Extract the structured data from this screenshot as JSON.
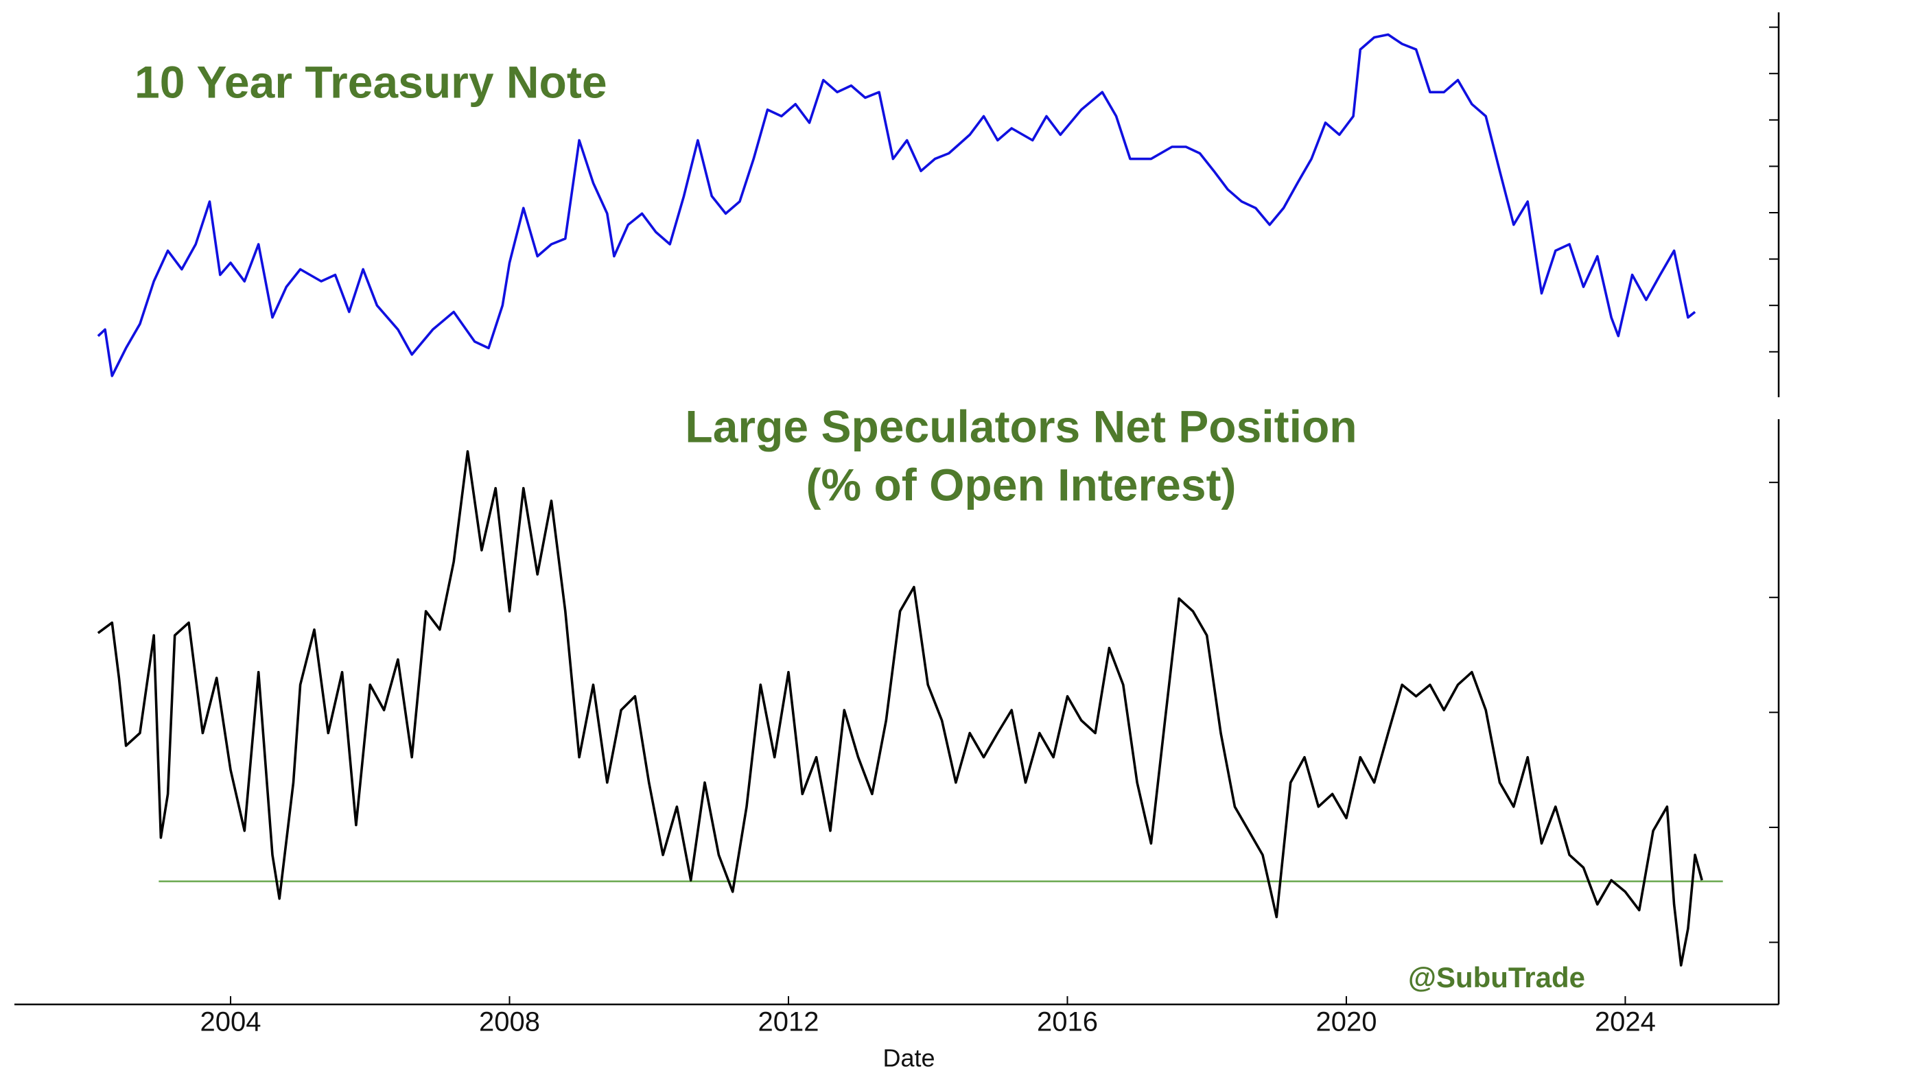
{
  "chart_data": [
    {
      "type": "line",
      "title": "10 Year Treasury Note",
      "title_color": "#4f7a2c",
      "color": "#1010e0",
      "xlim": [
        2000.9,
        2026.2
      ],
      "ylim": [
        105.1,
        146.6
      ],
      "yticks": [
        110,
        115,
        120,
        125,
        130,
        135,
        140,
        145
      ],
      "x": [
        2002.1,
        2002.2,
        2002.3,
        2002.5,
        2002.7,
        2002.9,
        2003.1,
        2003.3,
        2003.5,
        2003.7,
        2003.85,
        2004.0,
        2004.2,
        2004.4,
        2004.6,
        2004.8,
        2005.0,
        2005.3,
        2005.5,
        2005.7,
        2005.9,
        2006.1,
        2006.4,
        2006.6,
        2006.9,
        2007.2,
        2007.5,
        2007.7,
        2007.9,
        2008.0,
        2008.2,
        2008.4,
        2008.6,
        2008.8,
        2009.0,
        2009.2,
        2009.4,
        2009.5,
        2009.7,
        2009.9,
        2010.1,
        2010.3,
        2010.5,
        2010.7,
        2010.9,
        2011.1,
        2011.3,
        2011.5,
        2011.7,
        2011.9,
        2012.1,
        2012.3,
        2012.5,
        2012.7,
        2012.9,
        2013.1,
        2013.3,
        2013.5,
        2013.7,
        2013.9,
        2014.1,
        2014.3,
        2014.6,
        2014.8,
        2015.0,
        2015.2,
        2015.5,
        2015.7,
        2015.9,
        2016.2,
        2016.5,
        2016.7,
        2016.9,
        2017.2,
        2017.5,
        2017.7,
        2017.9,
        2018.1,
        2018.3,
        2018.5,
        2018.7,
        2018.9,
        2019.1,
        2019.3,
        2019.5,
        2019.7,
        2019.9,
        2020.1,
        2020.2,
        2020.4,
        2020.6,
        2020.8,
        2021.0,
        2021.2,
        2021.4,
        2021.6,
        2021.8,
        2022.0,
        2022.2,
        2022.4,
        2022.6,
        2022.8,
        2023.0,
        2023.2,
        2023.4,
        2023.6,
        2023.8,
        2023.9,
        2024.1,
        2024.3,
        2024.5,
        2024.7,
        2024.9,
        2025.0
      ],
      "values": [
        111.7,
        112.4,
        107.4,
        110.4,
        113.0,
        117.6,
        120.9,
        118.9,
        121.6,
        126.2,
        118.3,
        119.6,
        117.6,
        121.6,
        113.7,
        117.0,
        118.9,
        117.6,
        118.3,
        114.3,
        118.9,
        115.0,
        112.4,
        109.7,
        112.4,
        114.3,
        111.1,
        110.4,
        115.0,
        119.6,
        125.5,
        120.3,
        121.6,
        122.2,
        132.8,
        128.2,
        124.9,
        120.3,
        123.7,
        124.9,
        122.9,
        121.6,
        126.8,
        132.8,
        126.8,
        124.9,
        126.2,
        130.8,
        136.1,
        135.4,
        136.7,
        134.7,
        139.3,
        138.0,
        138.7,
        137.4,
        138.0,
        130.8,
        132.8,
        129.5,
        130.8,
        131.4,
        133.4,
        135.4,
        132.8,
        134.1,
        132.8,
        135.4,
        133.4,
        136.1,
        138.0,
        135.4,
        130.8,
        130.8,
        132.1,
        132.1,
        131.4,
        129.5,
        127.5,
        126.2,
        125.5,
        123.7,
        125.5,
        128.2,
        130.8,
        134.7,
        133.4,
        135.4,
        142.6,
        143.9,
        144.2,
        143.2,
        142.6,
        138.0,
        138.0,
        139.3,
        136.7,
        135.4,
        129.5,
        123.7,
        126.2,
        116.3,
        120.9,
        121.6,
        117.0,
        120.3,
        113.7,
        111.7,
        118.3,
        115.6,
        118.3,
        120.9,
        113.7,
        114.3
      ]
    },
    {
      "type": "line",
      "title": "Large Speculators Net Position",
      "subtitle": "(% of Open Interest)",
      "title_color": "#4f7a2c",
      "color": "#000000",
      "xlabel": "Date",
      "annotation": "@SubuTrade",
      "xlim": [
        2000.9,
        2026.2
      ],
      "xticks": [
        2004,
        2008,
        2012,
        2016,
        2020,
        2024
      ],
      "ylim": [
        -25.4,
        25.5
      ],
      "yticks": [
        -20,
        -10,
        0,
        10,
        20
      ],
      "hline": {
        "value": -14.7,
        "x": [
          2002.97,
          2025.4
        ],
        "color": "#6aa84f"
      },
      "x": [
        2002.1,
        2002.3,
        2002.4,
        2002.5,
        2002.7,
        2002.9,
        2003.0,
        2003.1,
        2003.2,
        2003.4,
        2003.6,
        2003.8,
        2004.0,
        2004.2,
        2004.4,
        2004.6,
        2004.7,
        2004.9,
        2005.0,
        2005.2,
        2005.4,
        2005.6,
        2005.8,
        2006.0,
        2006.2,
        2006.4,
        2006.6,
        2006.8,
        2007.0,
        2007.2,
        2007.4,
        2007.6,
        2007.8,
        2008.0,
        2008.2,
        2008.4,
        2008.6,
        2008.8,
        2009.0,
        2009.2,
        2009.4,
        2009.6,
        2009.8,
        2010.0,
        2010.2,
        2010.4,
        2010.6,
        2010.8,
        2011.0,
        2011.2,
        2011.4,
        2011.6,
        2011.8,
        2012.0,
        2012.2,
        2012.4,
        2012.6,
        2012.8,
        2013.0,
        2013.2,
        2013.4,
        2013.6,
        2013.8,
        2014.0,
        2014.2,
        2014.4,
        2014.6,
        2014.8,
        2015.0,
        2015.2,
        2015.4,
        2015.6,
        2015.8,
        2016.0,
        2016.2,
        2016.4,
        2016.6,
        2016.8,
        2017.0,
        2017.2,
        2017.4,
        2017.6,
        2017.8,
        2018.0,
        2018.2,
        2018.4,
        2018.6,
        2018.8,
        2019.0,
        2019.2,
        2019.4,
        2019.6,
        2019.8,
        2020.0,
        2020.2,
        2020.4,
        2020.6,
        2020.8,
        2021.0,
        2021.2,
        2021.4,
        2021.6,
        2021.8,
        2022.0,
        2022.2,
        2022.4,
        2022.6,
        2022.8,
        2023.0,
        2023.2,
        2023.4,
        2023.6,
        2023.8,
        2024.0,
        2024.2,
        2024.4,
        2024.6,
        2024.7,
        2024.8,
        2024.9,
        2025.0,
        2025.1
      ],
      "values": [
        6.9,
        7.8,
        3.0,
        -2.9,
        -1.8,
        6.7,
        -10.9,
        -7.1,
        6.7,
        7.8,
        -1.8,
        3.0,
        -5.0,
        -10.3,
        3.5,
        -12.4,
        -16.2,
        -6.1,
        2.4,
        7.2,
        -1.8,
        3.5,
        -9.8,
        2.4,
        0.2,
        4.6,
        -3.9,
        8.8,
        7.2,
        13.1,
        22.7,
        14.1,
        19.5,
        8.8,
        19.5,
        12.0,
        18.4,
        8.8,
        -3.9,
        2.4,
        -6.1,
        0.2,
        1.4,
        -6.1,
        -12.4,
        -8.2,
        -14.6,
        -6.1,
        -12.4,
        -15.6,
        -8.2,
        2.4,
        -3.9,
        3.5,
        -7.1,
        -3.9,
        -10.3,
        0.2,
        -3.9,
        -7.1,
        -0.7,
        8.8,
        10.9,
        2.4,
        -0.7,
        -6.1,
        -1.8,
        -3.9,
        -1.8,
        0.2,
        -6.1,
        -1.8,
        -3.9,
        1.4,
        -0.7,
        -1.8,
        5.6,
        2.4,
        -6.1,
        -11.4,
        -0.7,
        9.9,
        8.8,
        6.7,
        -1.8,
        -8.2,
        -10.3,
        -12.4,
        -17.8,
        -6.1,
        -3.9,
        -8.2,
        -7.1,
        -9.2,
        -3.9,
        -6.1,
        -1.8,
        2.4,
        1.4,
        2.4,
        0.2,
        2.4,
        3.5,
        0.2,
        -6.1,
        -8.2,
        -3.9,
        -11.4,
        -8.2,
        -12.4,
        -13.5,
        -16.7,
        -14.6,
        -15.6,
        -17.2,
        -10.3,
        -8.2,
        -16.7,
        -22.0,
        -18.8,
        -12.4,
        -14.6
      ]
    }
  ]
}
